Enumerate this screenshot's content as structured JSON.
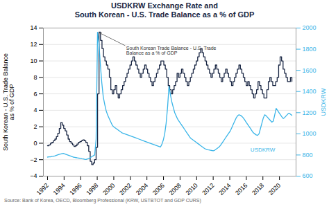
{
  "chart_data": {
    "type": "line",
    "title": "USDKRW Exchange Rate and\nSouth Korean - U.S. Trade Balance as a % of GDP",
    "ylabel": "South Korean - U.S. Trade Balance\nas % of GDP",
    "y2label": "USDKRW",
    "caption": "Source: Bank of Korea, OECD, Bloomberg Professional (KRW, USTBTOT and GDP CURS)",
    "xlim": [
      1991.5,
      2022.0
    ],
    "xticks": [
      1992,
      1994,
      1996,
      1998,
      2000,
      2002,
      2004,
      2006,
      2008,
      2010,
      2012,
      2014,
      2016,
      2018,
      2020
    ],
    "ylim": [
      -4,
      14
    ],
    "yticks": [
      -4,
      -2,
      0,
      2,
      4,
      6,
      8,
      10,
      12,
      14
    ],
    "y2lim": [
      600,
      2000
    ],
    "y2ticks": [
      600,
      800,
      1000,
      1200,
      1400,
      1600,
      1800,
      2000
    ],
    "grid": true,
    "series": [
      {
        "type": "step",
        "color": "#1a2744",
        "x": [
          1992,
          1992.1777,
          1992.3554,
          1992.5331,
          1992.7108,
          1992.8886,
          1993.0663,
          1993.244,
          1993.4217,
          1993.5994,
          1993.7771,
          1993.9548,
          1994.1325,
          1994.3102,
          1994.488,
          1994.6657,
          1994.8434,
          1995.0211,
          1995.1988,
          1995.3765,
          1995.5542,
          1995.7319,
          1995.9096,
          1996.0873,
          1996.2651,
          1996.4428,
          1996.6205,
          1996.7982,
          1996.9759,
          1997.1536,
          1997.3313,
          1997.509,
          1997.6867,
          1997.8645,
          1998.0422,
          1998.2199,
          1998.3976,
          1998.5753,
          1998.753,
          1998.9307,
          1999.1084,
          1999.2861,
          1999.4639,
          1999.6416,
          1999.8193,
          1999.997,
          2000.1747,
          2000.3524,
          2000.5301,
          2000.7078,
          2000.8855,
          2001.0633,
          2001.241,
          2001.4187,
          2001.5964,
          2001.7741,
          2001.9518,
          2002.1295,
          2002.3072,
          2002.4849,
          2002.6627,
          2002.8404,
          2003.0181,
          2003.1958,
          2003.3735,
          2003.5512,
          2003.7289,
          2003.9066,
          2004.0843,
          2004.262,
          2004.4398,
          2004.6175,
          2004.7952,
          2004.9729,
          2005.1506,
          2005.3283,
          2005.506,
          2005.6837,
          2005.8614,
          2006.0392,
          2006.2169,
          2006.3946,
          2006.5723,
          2006.75,
          2006.9277,
          2007.1054,
          2007.2831,
          2007.4608,
          2007.6386,
          2007.8163,
          2007.994,
          2008.1717,
          2008.3494,
          2008.5271,
          2008.7048,
          2008.8825,
          2009.0602,
          2009.238,
          2009.4157,
          2009.5934,
          2009.7711,
          2009.9488,
          2010.1265,
          2010.3042,
          2010.4819,
          2010.6596,
          2010.8373,
          2011.0151,
          2011.1928,
          2011.3705,
          2011.5482,
          2011.7259,
          2011.9036,
          2012.0813,
          2012.259,
          2012.4367,
          2012.6145,
          2012.7922,
          2012.9699,
          2013.1476,
          2013.3253,
          2013.503,
          2013.6807,
          2013.8584,
          2014.0361,
          2014.2139,
          2014.3916,
          2014.5693,
          2014.747,
          2014.9247,
          2015.1024,
          2015.2801,
          2015.4578,
          2015.6355,
          2015.8133,
          2015.991,
          2016.1687,
          2016.3464,
          2016.5241,
          2016.7018,
          2016.8795,
          2017.0572,
          2017.2349,
          2017.4127,
          2017.5904,
          2017.7681,
          2017.9458,
          2018.1235,
          2018.3012,
          2018.4789,
          2018.6566,
          2018.8343,
          2019.012,
          2019.1898,
          2019.3675,
          2019.5452,
          2019.7229,
          2019.9006,
          2020.0783,
          2020.256,
          2020.4337,
          2020.6114,
          2020.7892,
          2020.9669,
          2021.1446,
          2021.3223,
          2021.5
        ],
        "values": [
          -0.3,
          -0.2,
          0.0,
          0.1,
          0.3,
          0.5,
          0.8,
          1.2,
          1.8,
          2.5,
          2.2,
          1.8,
          1.5,
          1.0,
          0.5,
          0.2,
          0.0,
          -0.2,
          -0.4,
          -0.3,
          -0.1,
          0.1,
          0.2,
          0.3,
          0.4,
          0.3,
          0.1,
          -0.3,
          -1.0,
          -2.2,
          -2.6,
          -2.4,
          -2.0,
          -0.5,
          6.0,
          13.5,
          12.5,
          11.5,
          10.5,
          10.0,
          9.5,
          9.0,
          8.0,
          6.5,
          6.0,
          6.5,
          7.0,
          6.0,
          5.5,
          6.0,
          6.5,
          7.0,
          7.5,
          8.0,
          8.5,
          9.0,
          9.5,
          10.0,
          10.5,
          10.0,
          9.5,
          9.0,
          8.5,
          8.0,
          8.5,
          9.0,
          9.5,
          9.0,
          8.5,
          8.0,
          7.5,
          7.0,
          7.5,
          8.0,
          8.5,
          9.0,
          9.5,
          10.0,
          10.0,
          9.5,
          9.0,
          8.0,
          7.0,
          6.5,
          6.0,
          6.5,
          7.0,
          7.5,
          8.5,
          8.0,
          8.5,
          9.0,
          8.5,
          8.0,
          7.5,
          7.0,
          7.5,
          8.0,
          8.5,
          9.0,
          9.5,
          10.0,
          10.5,
          11.0,
          11.5,
          11.0,
          10.5,
          10.0,
          9.5,
          9.0,
          8.5,
          8.0,
          8.5,
          9.0,
          9.5,
          9.0,
          8.5,
          8.0,
          7.5,
          8.0,
          8.5,
          9.0,
          8.5,
          8.0,
          7.5,
          7.0,
          7.5,
          8.0,
          8.5,
          9.0,
          9.5,
          9.0,
          8.5,
          8.0,
          7.5,
          7.0,
          7.5,
          7.0,
          6.5,
          6.0,
          5.5,
          6.0,
          6.5,
          7.5,
          7.0,
          6.5,
          6.0,
          5.5,
          5.5,
          6.5,
          7.5,
          8.0,
          7.5,
          7.0,
          7.0,
          7.5,
          8.0,
          9.5,
          10.5,
          10.0,
          9.0,
          8.5,
          8.0,
          7.5,
          7.5,
          8.0,
          7.5
        ]
      },
      {
        "type": "line",
        "axis": "y2",
        "color": "#3ab5e8",
        "x": [
          1992,
          1992.1725,
          1992.345,
          1992.5175,
          1992.6901,
          1992.8626,
          1993.0351,
          1993.2076,
          1993.3801,
          1993.5526,
          1993.7251,
          1993.8977,
          1994.0702,
          1994.2427,
          1994.4152,
          1994.5877,
          1994.7602,
          1994.9327,
          1995.1053,
          1995.2778,
          1995.4503,
          1995.6228,
          1995.7953,
          1995.9678,
          1996.1404,
          1996.3129,
          1996.4854,
          1996.6579,
          1996.8304,
          1997.0029,
          1997.1754,
          1997.348,
          1997.5205,
          1997.693,
          1997.8655,
          1998.038,
          1998.2105,
          1998.383,
          1998.5556,
          1998.7281,
          1998.9006,
          1999.0731,
          1999.2456,
          1999.4181,
          1999.5906,
          1999.7632,
          1999.9357,
          2000.1082,
          2000.2807,
          2000.4532,
          2000.6257,
          2000.7982,
          2000.9708,
          2001.1433,
          2001.3158,
          2001.4883,
          2001.6608,
          2001.8333,
          2002.0058,
          2002.1784,
          2002.3509,
          2002.5234,
          2002.6959,
          2002.8684,
          2003.0409,
          2003.2135,
          2003.386,
          2003.5585,
          2003.731,
          2003.9035,
          2004.076,
          2004.2485,
          2004.4211,
          2004.5936,
          2004.7661,
          2004.9386,
          2005.1111,
          2005.2836,
          2005.4561,
          2005.6287,
          2005.8012,
          2005.9737,
          2006.1462,
          2006.3187,
          2006.4912,
          2006.6637,
          2006.8363,
          2007.0088,
          2007.1813,
          2007.3538,
          2007.5263,
          2007.6988,
          2007.8713,
          2008.0439,
          2008.2164,
          2008.3889,
          2008.5614,
          2008.7339,
          2008.9064,
          2009.0789,
          2009.2515,
          2009.424,
          2009.5965,
          2009.769,
          2009.9415,
          2010.114,
          2010.2865,
          2010.4591,
          2010.6316,
          2010.8041,
          2010.9766,
          2011.1491,
          2011.3216,
          2011.4942,
          2011.6667,
          2011.8392,
          2012.0117,
          2012.1842,
          2012.3567,
          2012.5292,
          2012.7018,
          2012.8743,
          2013.0468,
          2013.2193,
          2013.3918,
          2013.5643,
          2013.7368,
          2013.9094,
          2014.0819,
          2014.2544,
          2014.4269,
          2014.5994,
          2014.7719,
          2014.9444,
          2015.117,
          2015.2895,
          2015.462,
          2015.6345,
          2015.807,
          2015.9795,
          2016.152,
          2016.3246,
          2016.4971,
          2016.6696,
          2016.8421,
          2017.0146,
          2017.1871,
          2017.3596,
          2017.5322,
          2017.7047,
          2017.8772,
          2018.0497,
          2018.2222,
          2018.3947,
          2018.5673,
          2018.7398,
          2018.9123,
          2019.0848,
          2019.2573,
          2019.4298,
          2019.6023,
          2019.7749,
          2019.9474,
          2020.1199,
          2020.2924,
          2020.4649,
          2020.6374,
          2020.8099,
          2020.9825,
          2021.155,
          2021.3275,
          2021.5
        ],
        "values": [
          780,
          782,
          783,
          785,
          787,
          790,
          795,
          800,
          805,
          808,
          812,
          815,
          810,
          805,
          800,
          795,
          790,
          785,
          780,
          778,
          775,
          772,
          770,
          768,
          765,
          763,
          760,
          758,
          762,
          768,
          775,
          785,
          792,
          800,
          950,
          1960,
          1850,
          1650,
          1480,
          1350,
          1280,
          1220,
          1180,
          1150,
          1120,
          1090,
          1070,
          1060,
          1050,
          1040,
          1030,
          1020,
          1010,
          1005,
          1000,
          995,
          990,
          985,
          980,
          975,
          970,
          965,
          960,
          955,
          950,
          945,
          940,
          935,
          930,
          925,
          920,
          915,
          910,
          905,
          900,
          895,
          890,
          885,
          880,
          875,
          900,
          940,
          1000,
          1100,
          1250,
          1450,
          1370,
          1300,
          1250,
          1200,
          1170,
          1140,
          1120,
          1100,
          1080,
          1060,
          1040,
          1020,
          1000,
          980,
          960,
          950,
          940,
          930,
          920,
          910,
          900,
          890,
          880,
          870,
          860,
          855,
          850,
          848,
          845,
          842,
          840,
          845,
          855,
          865,
          875,
          890,
          910,
          930,
          950,
          970,
          990,
          1010,
          1030,
          1060,
          1090,
          1120,
          1150,
          1170,
          1180,
          1175,
          1165,
          1150,
          1130,
          1110,
          1090,
          1070,
          1050,
          1030,
          1010,
          1000,
          990,
          985,
          1000,
          1050,
          1100,
          1150,
          1180,
          1170,
          1155,
          1140,
          1125,
          1110,
          1120,
          1180,
          1240,
          1220,
          1200,
          1180,
          1160,
          1145,
          1155,
          1170,
          1185,
          1195,
          1185,
          1175
        ]
      }
    ],
    "annotations": [
      {
        "text": "South Korean Trade Balance - U.S. Trade\nBalance as a % of GDP",
        "x": 2001.5,
        "y": 11.8,
        "arrow_x": 1998.3,
        "arrow_y": 13.4
      },
      {
        "text": "USDKRW",
        "x": 2016.5,
        "y": -0.5,
        "color": "#3ab5e8"
      }
    ]
  }
}
